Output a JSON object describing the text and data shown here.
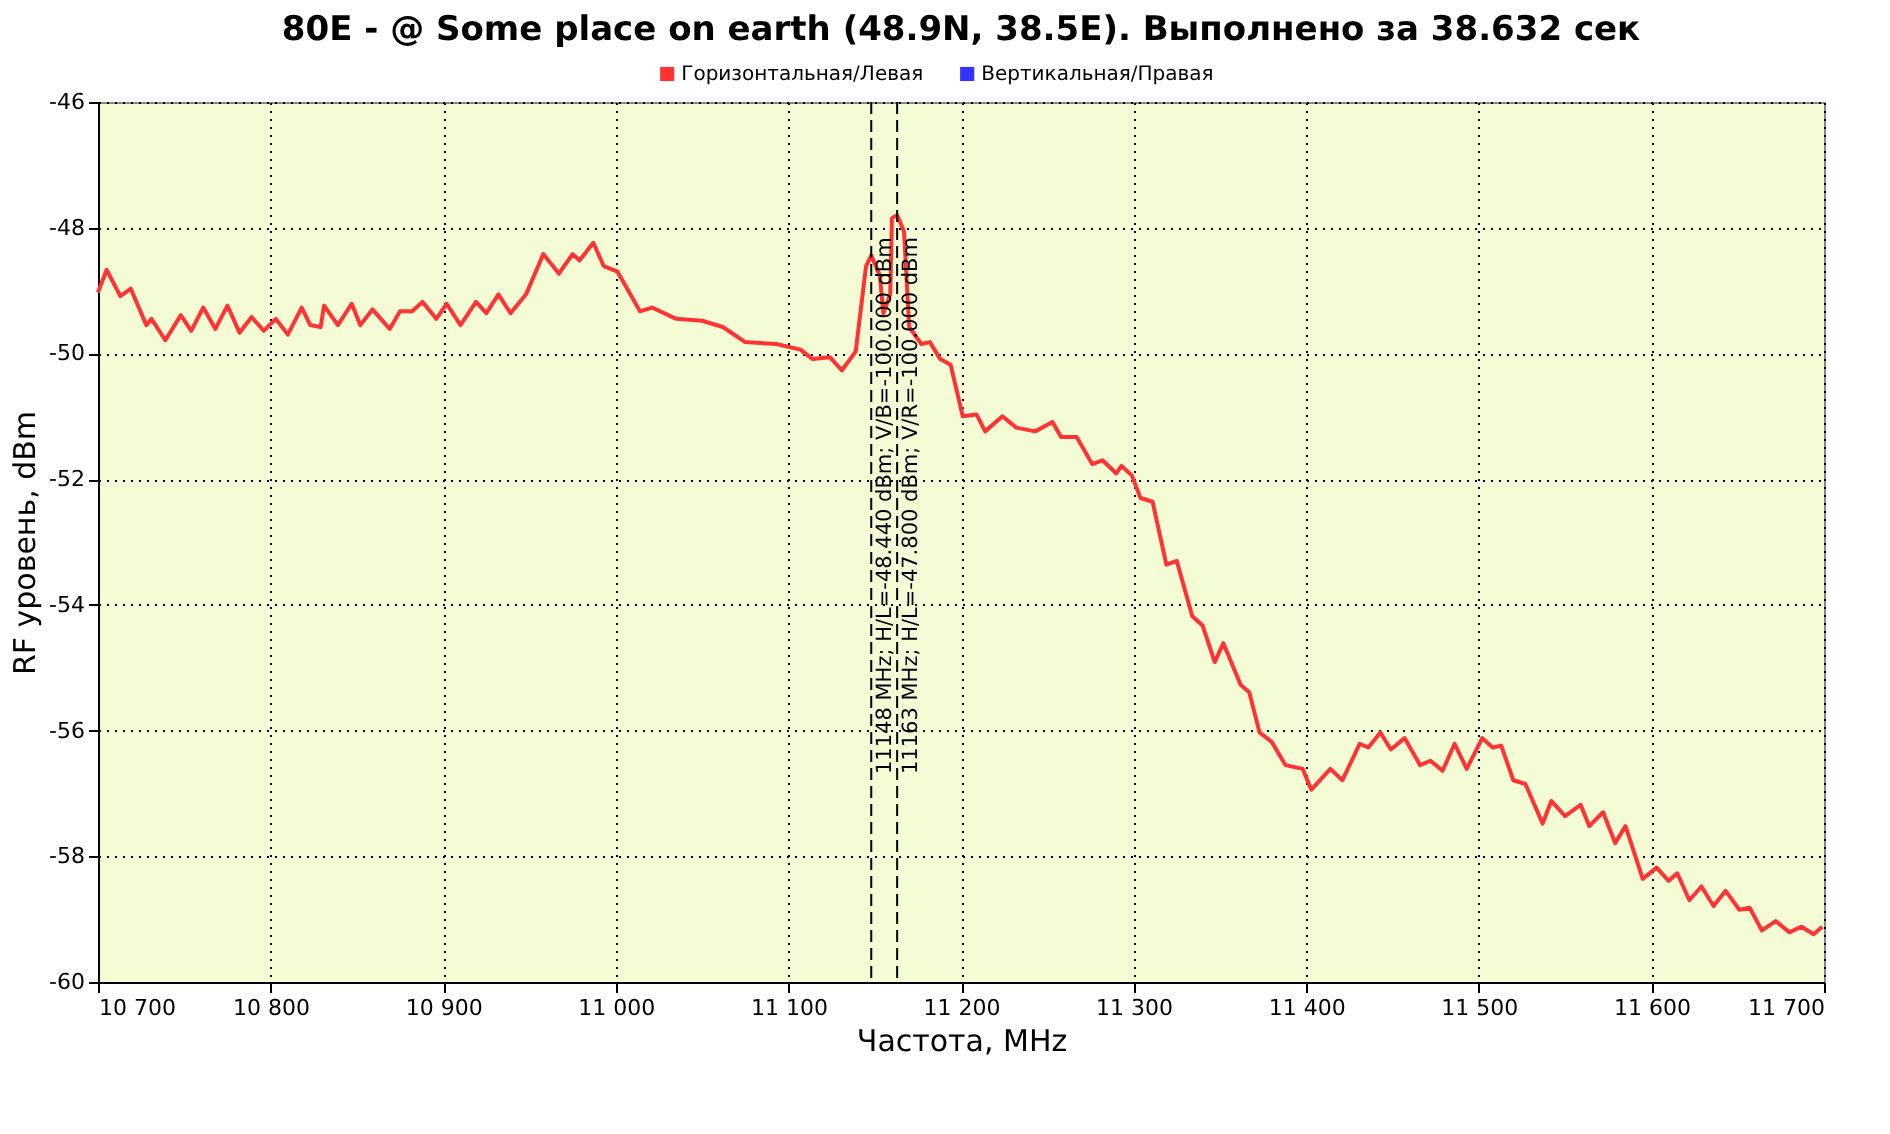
{
  "chart_data": {
    "type": "line",
    "title": "80E - @ Some place on earth (48.9N, 38.5E). Выполнено за 38.632 сек",
    "xlabel": "Частота, MHz",
    "ylabel": "RF уровень, dBm",
    "xlim": [
      10700,
      11700
    ],
    "xticks": [
      {
        "value": 10700,
        "label": "10 700"
      },
      {
        "value": 10800,
        "label": "10 800"
      },
      {
        "value": 10900,
        "label": "10 900"
      },
      {
        "value": 11000,
        "label": "11 000"
      },
      {
        "value": 11100,
        "label": "11 100"
      },
      {
        "value": 11200,
        "label": "11 200"
      },
      {
        "value": 11300,
        "label": "11 300"
      },
      {
        "value": 11400,
        "label": "11 400"
      },
      {
        "value": 11500,
        "label": "11 500"
      },
      {
        "value": 11600,
        "label": "11 600"
      },
      {
        "value": 11700,
        "label": "11 700"
      }
    ],
    "ylim": [
      -60,
      -46
    ],
    "yticks": [
      -60,
      -58,
      -56,
      -54,
      -52,
      -50,
      -48,
      -46
    ],
    "grid": true,
    "legend": "top",
    "marker": "none",
    "line_style": "solid",
    "ref_lines": [
      {
        "axis": "x",
        "value": 11148,
        "label": "11148 MHz;  H/L=-48.440 dBm;  V/B=-100.000 dBm",
        "line_style": "dashed",
        "color": "#000000"
      },
      {
        "axis": "x",
        "value": 11163,
        "label": "11163 MHz;  H/L=-47.800 dBm;  V/R=-100.000 dBm",
        "line_style": "dashed",
        "color": "#000000"
      }
    ],
    "series": [
      {
        "name": "Горизонтальная/Левая",
        "color": "#ff3333",
        "x": [
          10700,
          10705,
          10713,
          10719,
          10728,
          10731,
          10739,
          10748,
          10754,
          10761,
          10768,
          10775,
          10782,
          10789,
          10796,
          10803,
          10810,
          10818,
          10823,
          10829,
          10831,
          10839,
          10847,
          10852,
          10859,
          10869,
          10875,
          10882,
          10888,
          10896,
          10902,
          10910,
          10919,
          10925,
          10932,
          10939,
          10948,
          10958,
          10967,
          10975,
          10979,
          10987,
          10993,
          11001,
          11014,
          11021,
          11035,
          11050,
          11062,
          11075,
          11093,
          11107,
          11114,
          11124,
          11131,
          11139,
          11145,
          11148,
          11153,
          11155,
          11159,
          11160,
          11163,
          11167,
          11170,
          11177,
          11182,
          11188,
          11194,
          11201,
          11209,
          11214,
          11224,
          11232,
          11243,
          11253,
          11258,
          11267,
          11276,
          11282,
          11290,
          11293,
          11299,
          11304,
          11311,
          11319,
          11325,
          11334,
          11340,
          11347,
          11352,
          11362,
          11367,
          11373,
          11380,
          11388,
          11398,
          11403,
          11414,
          11421,
          11431,
          11436,
          11443,
          11449,
          11457,
          11466,
          11472,
          11479,
          11486,
          11493,
          11502,
          11508,
          11513,
          11520,
          11527,
          11537,
          11542,
          11550,
          11559,
          11564,
          11572,
          11579,
          11585,
          11595,
          11603,
          11610,
          11615,
          11622,
          11629,
          11636,
          11643,
          11651,
          11657,
          11664,
          11672,
          11680,
          11687,
          11694,
          11699
        ],
        "values": [
          -49.03,
          -48.67,
          -49.09,
          -48.97,
          -49.55,
          -49.45,
          -49.79,
          -49.39,
          -49.64,
          -49.27,
          -49.61,
          -49.24,
          -49.67,
          -49.42,
          -49.64,
          -49.45,
          -49.7,
          -49.27,
          -49.55,
          -49.58,
          -49.24,
          -49.55,
          -49.21,
          -49.55,
          -49.3,
          -49.61,
          -49.33,
          -49.33,
          -49.18,
          -49.45,
          -49.21,
          -49.55,
          -49.18,
          -49.36,
          -49.06,
          -49.36,
          -49.06,
          -48.42,
          -48.73,
          -48.42,
          -48.52,
          -48.24,
          -48.61,
          -48.7,
          -49.33,
          -49.27,
          -49.45,
          -49.48,
          -49.58,
          -49.82,
          -49.85,
          -49.94,
          -50.09,
          -50.06,
          -50.27,
          -49.97,
          -48.61,
          -48.44,
          -48.76,
          -49.36,
          -49.06,
          -47.85,
          -47.8,
          -48.06,
          -49.58,
          -49.85,
          -49.82,
          -50.09,
          -50.18,
          -51.0,
          -50.97,
          -51.24,
          -51.0,
          -51.18,
          -51.24,
          -51.09,
          -51.33,
          -51.33,
          -51.76,
          -51.7,
          -51.91,
          -51.79,
          -51.94,
          -52.3,
          -52.36,
          -53.36,
          -53.3,
          -54.18,
          -54.33,
          -54.91,
          -54.61,
          -55.27,
          -55.39,
          -56.03,
          -56.18,
          -56.55,
          -56.61,
          -56.94,
          -56.61,
          -56.79,
          -56.21,
          -56.27,
          -56.03,
          -56.3,
          -56.12,
          -56.55,
          -56.48,
          -56.64,
          -56.21,
          -56.61,
          -56.12,
          -56.27,
          -56.24,
          -56.79,
          -56.85,
          -57.48,
          -57.12,
          -57.36,
          -57.18,
          -57.52,
          -57.3,
          -57.79,
          -57.52,
          -58.36,
          -58.18,
          -58.39,
          -58.27,
          -58.7,
          -58.48,
          -58.79,
          -58.55,
          -58.85,
          -58.82,
          -59.18,
          -59.03,
          -59.21,
          -59.12,
          -59.24,
          -59.12
        ]
      },
      {
        "name": "Вертикальная/Правая",
        "color": "#3333ff"
      }
    ]
  }
}
